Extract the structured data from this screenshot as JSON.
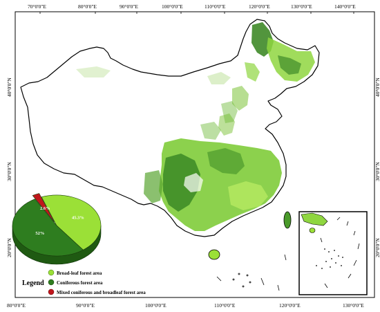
{
  "top_labels": [
    "70°0'0\"E",
    "80°0'0\"E",
    "90°0'0\"E",
    "100°0'0\"E",
    "110°0'0\"E",
    "120°0'0\"E",
    "130°0'0\"E",
    "140°0'0\"E"
  ],
  "bottom_labels": [
    "80°0'0\"E",
    "90°0'0\"E",
    "100°0'0\"E",
    "110°0'0\"E",
    "120°0'0\"E",
    "130°0'0\"E"
  ],
  "left_labels": [
    "40°0'0\"N",
    "30°0'0\"N",
    "20°0'0\"N"
  ],
  "right_labels": [
    "40°0'0\"N",
    "30°0'0\"N",
    "20°0'0\"N"
  ],
  "legend": {
    "title": "Legend",
    "items": [
      {
        "label": "Broad-leaf forest area",
        "color": "#9be037"
      },
      {
        "label": "Coniferous forest area",
        "color": "#2e7d1f"
      },
      {
        "label": "Mixed coniferous and broadleaf forest area",
        "color": "#c0161c"
      }
    ]
  },
  "chart_data": {
    "type": "pie",
    "slices": [
      {
        "label": "45.3%",
        "value": 45.3,
        "color": "#9be037"
      },
      {
        "label": "52%",
        "value": 52,
        "color": "#2e7d1f"
      },
      {
        "label": "2.6%",
        "value": 2.6,
        "color": "#c0161c"
      }
    ]
  }
}
